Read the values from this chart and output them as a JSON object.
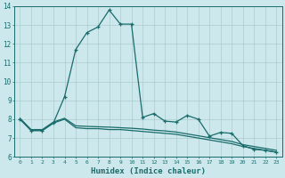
{
  "title": "",
  "xlabel": "Humidex (Indice chaleur)",
  "bg_color": "#cce8ec",
  "grid_color": "#aacccc",
  "line_color": "#1a6b6b",
  "xlim": [
    -0.5,
    23.5
  ],
  "ylim": [
    6,
    14
  ],
  "xticks": [
    0,
    1,
    2,
    3,
    4,
    5,
    6,
    7,
    8,
    9,
    10,
    11,
    12,
    13,
    14,
    15,
    16,
    17,
    18,
    19,
    20,
    21,
    22,
    23
  ],
  "yticks": [
    6,
    7,
    8,
    9,
    10,
    11,
    12,
    13,
    14
  ],
  "series1_x": [
    0,
    1,
    2,
    3,
    4,
    5,
    6,
    7,
    8,
    9,
    10,
    11,
    12,
    13,
    14,
    15,
    16,
    17,
    18,
    19,
    20,
    21,
    22,
    23
  ],
  "series1_y": [
    8.0,
    7.4,
    7.4,
    7.8,
    8.0,
    7.55,
    7.5,
    7.5,
    7.45,
    7.45,
    7.4,
    7.35,
    7.3,
    7.25,
    7.2,
    7.1,
    7.0,
    6.9,
    6.8,
    6.7,
    6.55,
    6.45,
    6.35,
    6.25
  ],
  "series2_x": [
    0,
    1,
    2,
    3,
    4,
    5,
    6,
    7,
    8,
    9,
    10,
    11,
    12,
    13,
    14,
    15,
    16,
    17,
    18,
    19,
    20,
    21,
    22,
    23
  ],
  "series2_y": [
    8.05,
    7.45,
    7.45,
    7.85,
    8.05,
    7.65,
    7.62,
    7.6,
    7.58,
    7.55,
    7.52,
    7.48,
    7.42,
    7.38,
    7.32,
    7.22,
    7.12,
    7.02,
    6.92,
    6.82,
    6.65,
    6.55,
    6.45,
    6.35
  ],
  "series3_x": [
    0,
    1,
    2,
    3,
    4,
    5,
    6,
    7,
    8,
    9,
    10,
    11,
    12,
    13,
    14,
    15,
    16,
    17,
    18,
    19,
    20,
    21,
    22,
    23
  ],
  "series3_y": [
    8.0,
    7.4,
    7.4,
    7.8,
    9.2,
    11.7,
    12.6,
    12.9,
    13.8,
    13.05,
    13.05,
    8.1,
    8.3,
    7.9,
    7.85,
    8.2,
    8.0,
    7.1,
    7.3,
    7.25,
    6.6,
    6.4,
    6.35,
    6.25
  ],
  "marker_style": "+",
  "marker_size": 3.5,
  "line_width": 0.9
}
